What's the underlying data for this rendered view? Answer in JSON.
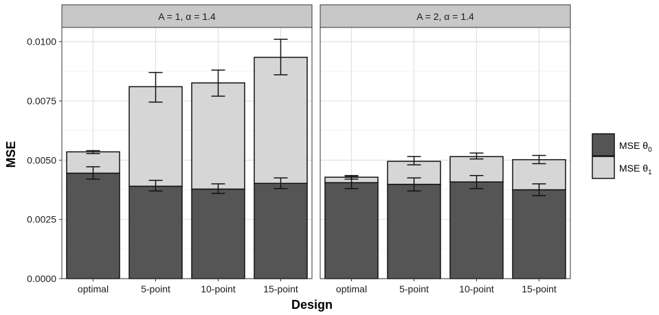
{
  "chart_data": {
    "type": "bar",
    "stacked": true,
    "xlabel": "Design",
    "ylabel": "MSE",
    "ylim": [
      0,
      0.0106
    ],
    "yticks": [
      0,
      0.0025,
      0.005,
      0.0075,
      0.01
    ],
    "ytick_labels": [
      "0.0000",
      "0.0025",
      "0.0050",
      "0.0075",
      "0.0100"
    ],
    "categories": [
      "optimal",
      "5-point",
      "10-point",
      "15-point"
    ],
    "grid": true,
    "legend_position": "right",
    "colors": {
      "mse_theta0": "#555555",
      "mse_theta1": "#d6d6d6",
      "panel_bg": "#ffffff",
      "grid": "#e0e0e0",
      "strip_bg": "#c8c8c8"
    },
    "legend": [
      {
        "key": "mse_theta0",
        "label": "MSE θ",
        "sub": "0"
      },
      {
        "key": "mse_theta1",
        "label": "MSE θ",
        "sub": "1"
      }
    ],
    "panels": [
      {
        "title": "A = 1, α = 1.4",
        "series": [
          {
            "key": "mse_theta0",
            "values": [
              0.00445,
              0.0039,
              0.00378,
              0.00402
            ],
            "err_low": [
              0.0042,
              0.0037,
              0.0036,
              0.0038
            ],
            "err_high": [
              0.00472,
              0.00415,
              0.004,
              0.00425
            ]
          },
          {
            "key": "mse_theta1",
            "values": [
              0.0009,
              0.0042,
              0.00448,
              0.00532
            ],
            "err_low": [
              0.00528,
              0.00745,
              0.0077,
              0.0086
            ],
            "err_high": [
              0.0054,
              0.0087,
              0.0088,
              0.0101
            ]
          }
        ]
      },
      {
        "title": "A = 2, α = 1.4",
        "series": [
          {
            "key": "mse_theta0",
            "values": [
              0.00405,
              0.00398,
              0.00408,
              0.00375
            ],
            "err_low": [
              0.0038,
              0.0037,
              0.0038,
              0.0035
            ],
            "err_high": [
              0.0043,
              0.00425,
              0.00435,
              0.004
            ]
          },
          {
            "key": "mse_theta1",
            "values": [
              0.00023,
              0.00097,
              0.00107,
              0.00127
            ],
            "err_low": [
              0.0042,
              0.0048,
              0.00505,
              0.00485
            ],
            "err_high": [
              0.00435,
              0.00515,
              0.0053,
              0.0052
            ]
          }
        ]
      }
    ]
  }
}
